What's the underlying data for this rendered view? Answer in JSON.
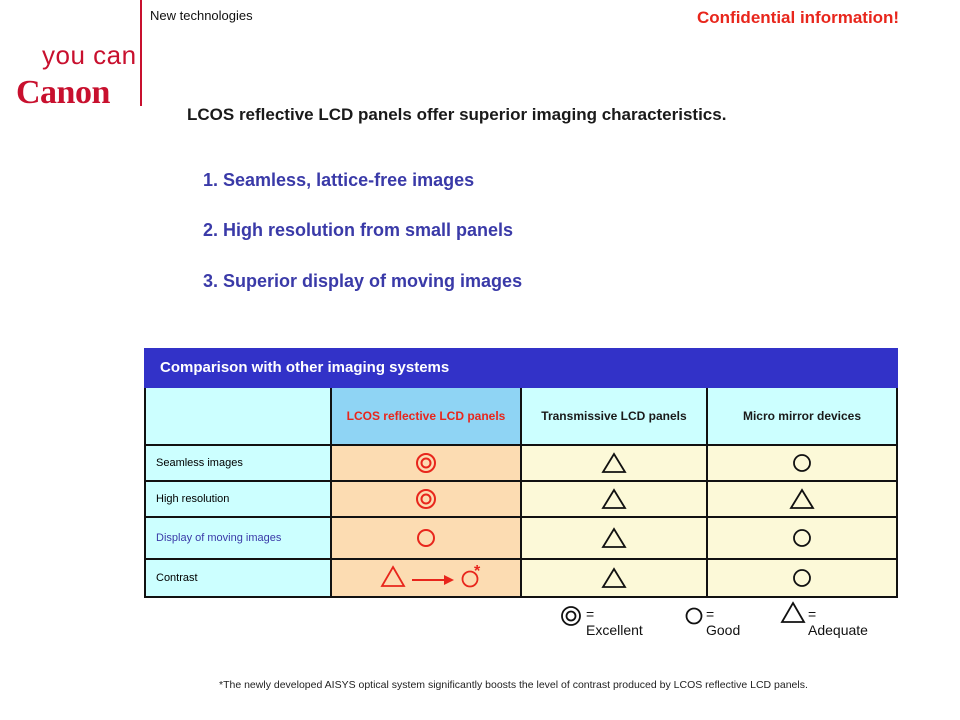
{
  "header": {
    "logo": {
      "tagline": "you can",
      "brand": "Canon",
      "brand_color": "#c8102e"
    },
    "section_label": "New technologies",
    "confidential": "Confidential information!"
  },
  "headline": "LCOS reflective LCD panels offer superior imaging characteristics.",
  "points": [
    "1. Seamless, lattice-free images",
    "2. High resolution from small panels",
    "3. Superior display of moving images"
  ],
  "comparison": {
    "title": "Comparison with other imaging systems",
    "columns": [
      "",
      "LCOS reflective LCD panels",
      "Transmissive LCD panels",
      "Micro mirror devices"
    ],
    "rows": [
      {
        "label": "Seamless images",
        "values": [
          "excellent",
          "adequate",
          "good"
        ]
      },
      {
        "label": "High resolution",
        "values": [
          "excellent",
          "adequate",
          "adequate"
        ]
      },
      {
        "label": "Display of moving images",
        "values": [
          "good",
          "adequate",
          "good"
        ]
      },
      {
        "label": "Contrast",
        "values": [
          "adequate-to-good",
          "adequate",
          "good"
        ],
        "note_mark": "*"
      }
    ],
    "colors": {
      "header": "#3232c8",
      "lcos_header": "#8fd4f4",
      "label_col": "#ccffff",
      "lcos_col": "#fcdcb2",
      "other_col": "#fcf9d8",
      "lcos_text": "#e8261c",
      "blue_label": "#3a3aa8"
    }
  },
  "legend": {
    "excellent": "= Excellent",
    "good": "= Good",
    "adequate": "= Adequate"
  },
  "footnote": "*The newly developed AISYS optical system significantly boosts the level of contrast produced by LCOS reflective LCD panels."
}
